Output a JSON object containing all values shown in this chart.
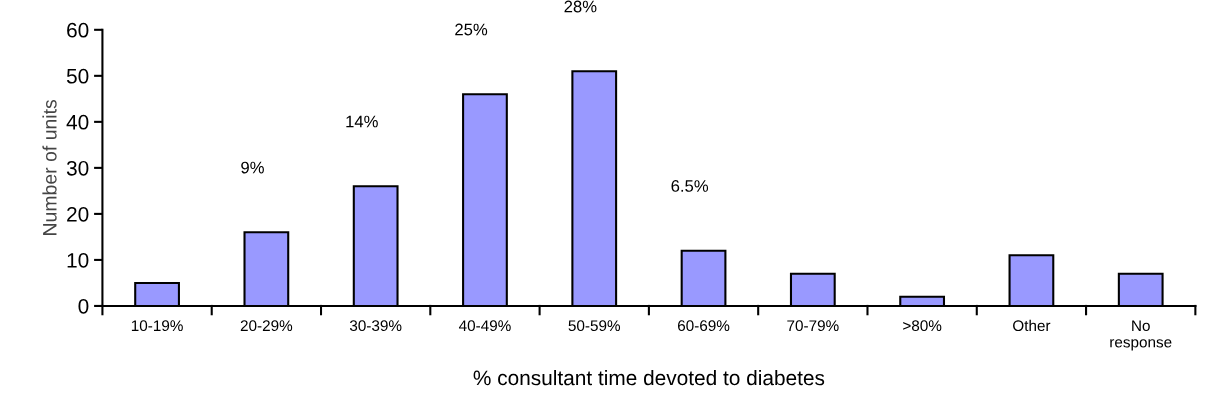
{
  "chart_data": {
    "type": "bar",
    "xlabel": "% consultant time devoted to diabetes",
    "ylabel": "Number of units",
    "categories": [
      "10-19%",
      "20-29%",
      "30-39%",
      "40-49%",
      "50-59%",
      "60-69%",
      "70-79%",
      ">80%",
      "Other",
      "No\nresponse"
    ],
    "values": [
      5,
      16,
      26,
      46,
      51,
      12,
      7,
      2,
      11,
      7
    ],
    "annotations": [
      "9%",
      "14%",
      "25%",
      "28%",
      "6.5%"
    ],
    "color": "#9999ff",
    "ylim": [
      0,
      60
    ],
    "yticks": [
      0,
      10,
      20,
      30,
      40,
      50,
      60
    ],
    "grid": false,
    "legend": false
  }
}
